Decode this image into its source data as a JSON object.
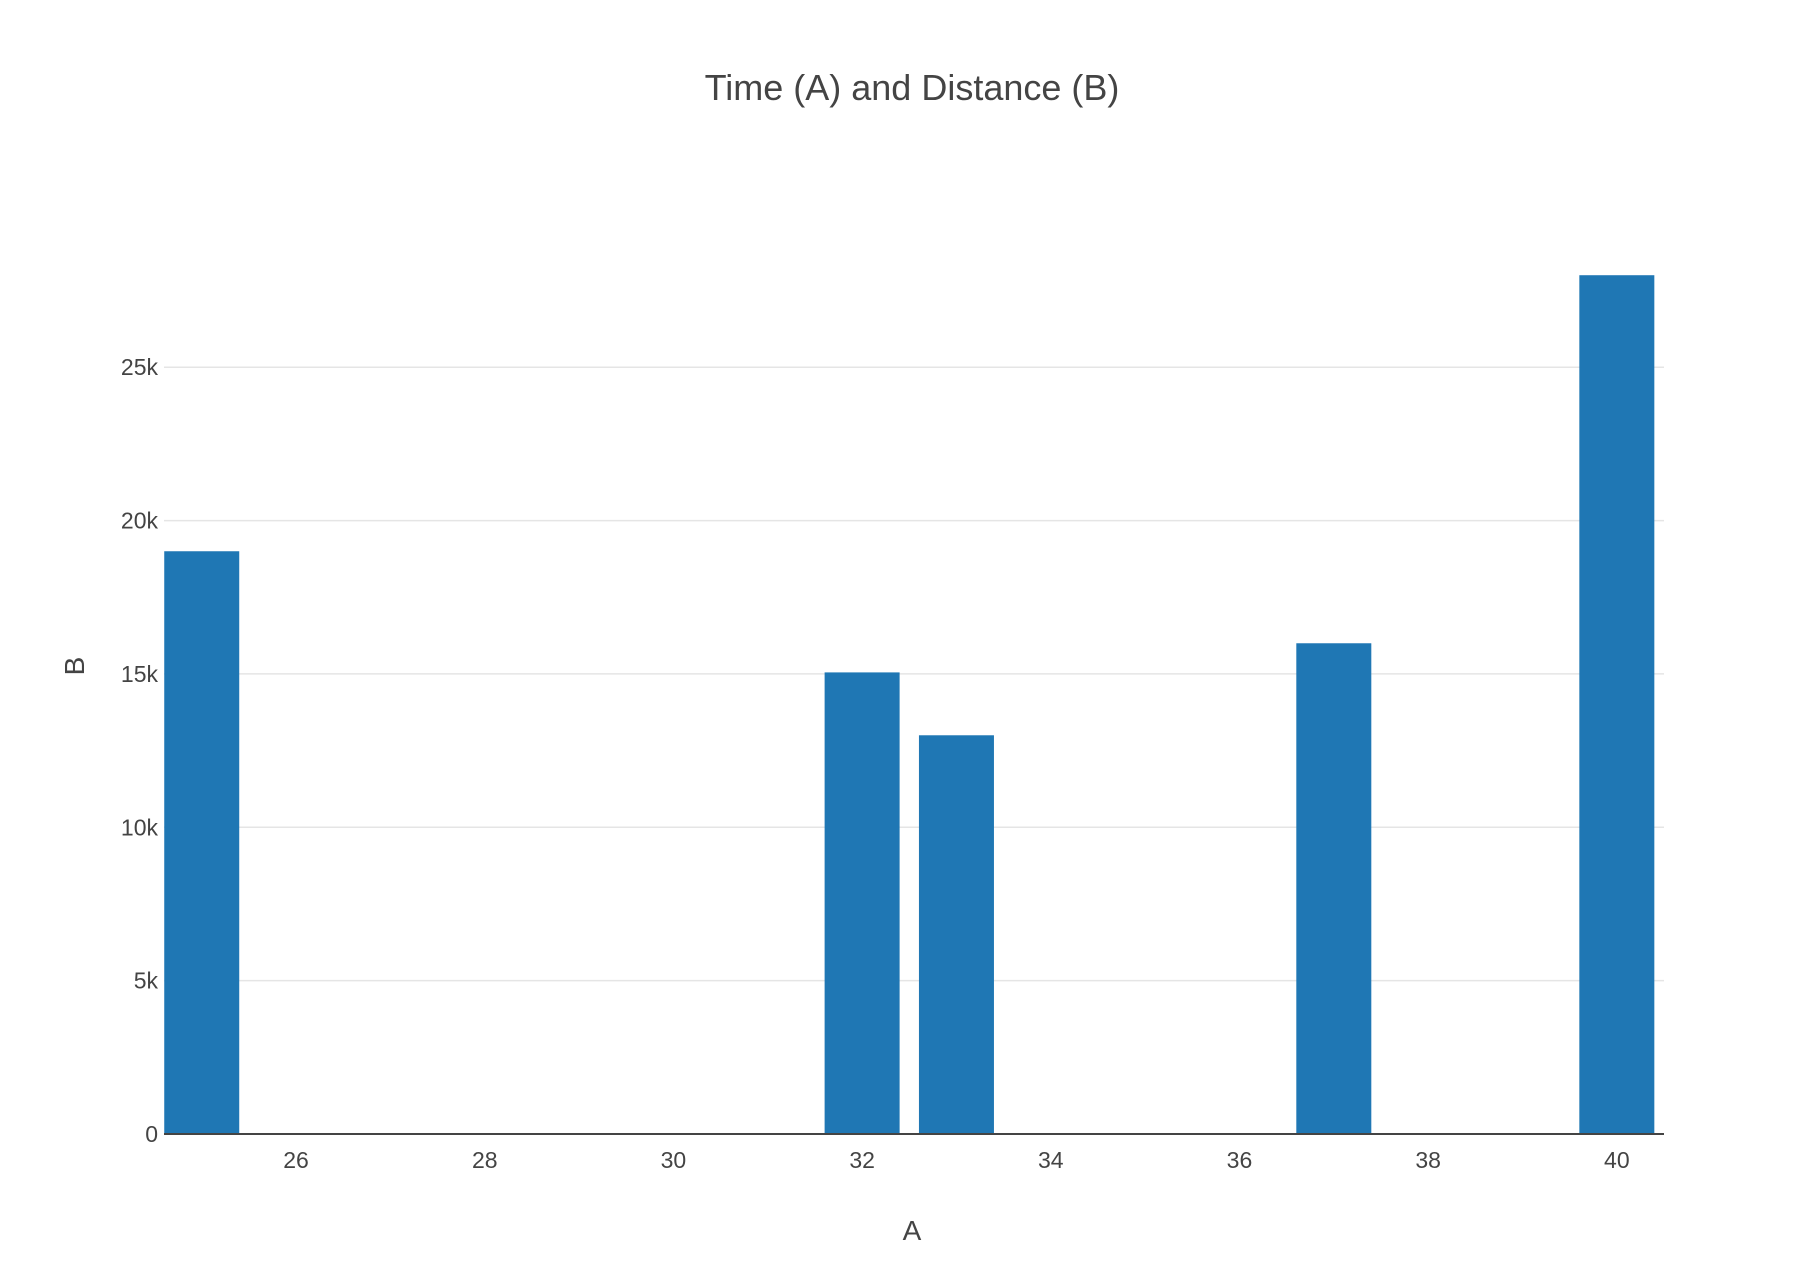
{
  "chart_data": {
    "type": "bar",
    "title": "Time (A) and Distance (B)",
    "xlabel": "A",
    "ylabel": "B",
    "x": [
      25,
      32,
      33,
      37,
      40
    ],
    "values": [
      19000,
      15050,
      13000,
      16000,
      28000
    ],
    "xlim": [
      24.6,
      40.5
    ],
    "ylim": [
      0,
      29474
    ],
    "x_ticks": [
      26,
      28,
      30,
      32,
      34,
      36,
      38,
      40
    ],
    "x_tick_labels": [
      "26",
      "28",
      "30",
      "32",
      "34",
      "36",
      "38",
      "40"
    ],
    "y_ticks": [
      0,
      5000,
      10000,
      15000,
      20000,
      25000
    ],
    "y_tick_labels": [
      "0",
      "5k",
      "10k",
      "15k",
      "20k",
      "25k"
    ],
    "bar_color": "#1f77b4",
    "grid": true,
    "legend": "none"
  }
}
